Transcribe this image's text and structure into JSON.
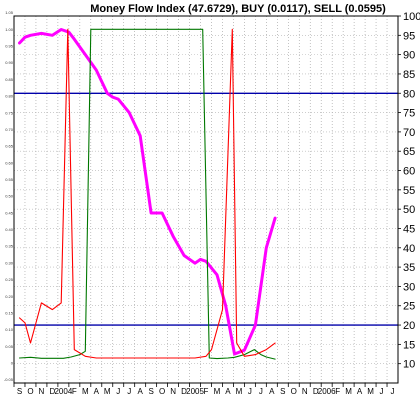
{
  "chart_data": {
    "type": "line",
    "title": "Money Flow Index (47.6729), BUY (0.0117), SELL (0.0595)",
    "x_labels": [
      "S",
      "O",
      "N",
      "D",
      "2004",
      "F",
      "M",
      "A",
      "M",
      "J",
      "J",
      "A",
      "S",
      "O",
      "N",
      "D",
      "2005",
      "F",
      "M",
      "A",
      "M",
      "J",
      "J",
      "A",
      "S",
      "O",
      "N",
      "D",
      "2006",
      "F",
      "M",
      "A",
      "M",
      "J",
      "J"
    ],
    "y_right": {
      "range": [
        5,
        100
      ],
      "ticks": [
        10,
        15,
        20,
        25,
        30,
        35,
        40,
        45,
        50,
        55,
        60,
        65,
        70,
        75,
        80,
        85,
        90,
        95,
        100
      ]
    },
    "y_left": {
      "range": [
        -0.06,
        1.04
      ],
      "ticks": [
        "-0.05",
        "0",
        "0.05",
        "0.10",
        "0.15",
        "0.20",
        "0.25",
        "0.30",
        "0.35",
        "0.40",
        "0.45",
        "0.50",
        "0.55",
        "0.60",
        "0.65",
        "0.70",
        "0.75",
        "0.80",
        "0.85",
        "0.90",
        "0.95",
        "1.00",
        "1.05"
      ]
    },
    "reference_lines": [
      80,
      20
    ],
    "series": [
      {
        "name": "Money Flow Index",
        "axis": "right",
        "color": "#ff00ff",
        "points": [
          [
            0,
            93
          ],
          [
            0.5,
            94.5
          ],
          [
            1,
            95
          ],
          [
            2,
            95.5
          ],
          [
            3,
            95
          ],
          [
            3.8,
            96.5
          ],
          [
            4.5,
            95.8
          ],
          [
            5,
            94
          ],
          [
            6,
            90
          ],
          [
            7,
            86
          ],
          [
            8,
            80
          ],
          [
            8.5,
            79
          ],
          [
            9,
            78.5
          ],
          [
            10,
            75
          ],
          [
            11,
            69
          ],
          [
            12,
            49
          ],
          [
            13,
            49
          ],
          [
            14,
            43
          ],
          [
            15,
            38
          ],
          [
            16,
            36
          ],
          [
            16.5,
            37
          ],
          [
            17,
            36.5
          ],
          [
            18,
            33
          ],
          [
            18.8,
            25
          ],
          [
            19.6,
            12.5
          ],
          [
            20.5,
            13.5
          ],
          [
            21.5,
            20
          ],
          [
            22.5,
            40
          ],
          [
            23.3,
            47.6729
          ]
        ]
      },
      {
        "name": "BUY",
        "axis": "left",
        "color": "#007700",
        "points": [
          [
            0,
            0.015
          ],
          [
            1,
            0.017
          ],
          [
            2,
            0.014
          ],
          [
            3,
            0.014
          ],
          [
            4,
            0.014
          ],
          [
            4.7,
            0.018
          ],
          [
            5.5,
            0.025
          ],
          [
            6,
            0.035
          ],
          [
            6.5,
            1.0
          ],
          [
            7,
            1.0
          ],
          [
            8,
            1.0
          ],
          [
            9,
            1.0
          ],
          [
            10,
            1.0
          ],
          [
            11,
            1.0
          ],
          [
            12,
            1.0
          ],
          [
            13,
            1.0
          ],
          [
            14,
            1.0
          ],
          [
            15,
            1.0
          ],
          [
            16,
            1.0
          ],
          [
            16.7,
            1.0
          ],
          [
            17.3,
            0.015
          ],
          [
            18,
            0.013
          ],
          [
            19,
            0.015
          ],
          [
            19.6,
            0.017
          ],
          [
            20.5,
            0.025
          ],
          [
            21.4,
            0.04
          ],
          [
            22,
            0.025
          ],
          [
            22.5,
            0.018
          ],
          [
            23.3,
            0.0117
          ]
        ]
      },
      {
        "name": "SELL",
        "axis": "left",
        "color": "#ff0000",
        "points": [
          [
            0,
            0.135
          ],
          [
            0.5,
            0.12
          ],
          [
            1,
            0.06
          ],
          [
            2,
            0.18
          ],
          [
            3,
            0.16
          ],
          [
            3.8,
            0.18
          ],
          [
            4.4,
            1.0
          ],
          [
            5,
            0.04
          ],
          [
            6,
            0.02
          ],
          [
            7,
            0.015
          ],
          [
            8,
            0.015
          ],
          [
            9,
            0.015
          ],
          [
            10,
            0.015
          ],
          [
            11,
            0.015
          ],
          [
            12,
            0.015
          ],
          [
            13,
            0.015
          ],
          [
            14,
            0.015
          ],
          [
            15,
            0.015
          ],
          [
            16,
            0.015
          ],
          [
            17,
            0.02
          ],
          [
            17.5,
            0.04
          ],
          [
            18.5,
            0.16
          ],
          [
            19.4,
            1.0
          ],
          [
            19.8,
            0.06
          ],
          [
            20.5,
            0.02
          ],
          [
            21.5,
            0.025
          ],
          [
            22.5,
            0.04
          ],
          [
            23.3,
            0.0595
          ]
        ]
      }
    ],
    "colors": {
      "reference": "#0000aa",
      "grid": "#9a9a9a",
      "background": "#ffffff"
    }
  }
}
